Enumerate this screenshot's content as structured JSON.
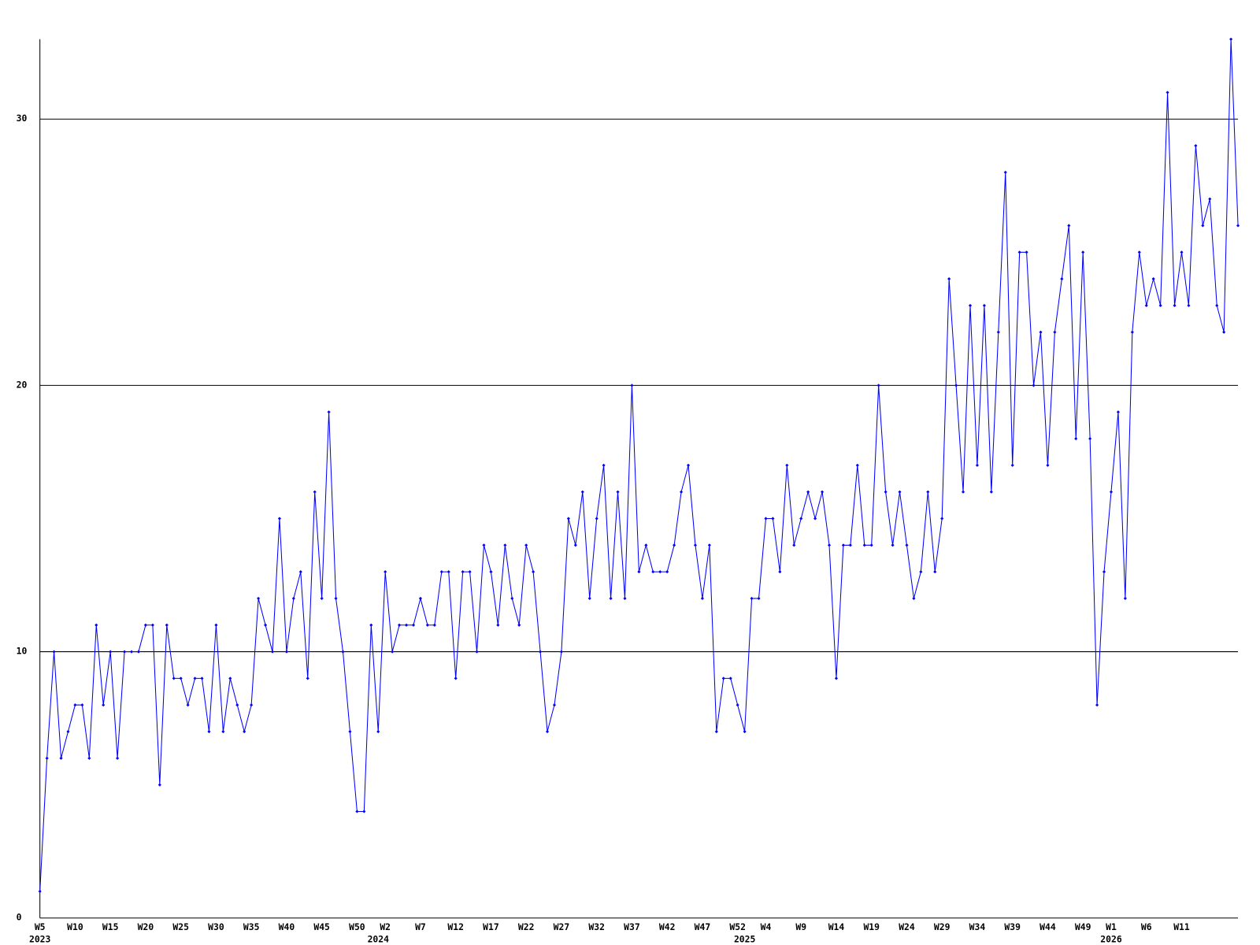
{
  "chart_data": {
    "type": "line",
    "categories": [
      "W5",
      null,
      null,
      null,
      null,
      "W10",
      null,
      null,
      null,
      null,
      "W15",
      null,
      null,
      null,
      null,
      "W20",
      null,
      null,
      null,
      null,
      "W25",
      null,
      null,
      null,
      null,
      "W30",
      null,
      null,
      null,
      null,
      "W35",
      null,
      null,
      null,
      null,
      "W40",
      null,
      null,
      null,
      null,
      "W45",
      null,
      null,
      null,
      null,
      "W50",
      null,
      null,
      null,
      "W2",
      null,
      null,
      null,
      null,
      "W7",
      null,
      null,
      null,
      null,
      "W12",
      null,
      null,
      null,
      null,
      "W17",
      null,
      null,
      null,
      null,
      "W22",
      null,
      null,
      null,
      null,
      "W27",
      null,
      null,
      null,
      null,
      "W32",
      null,
      null,
      null,
      null,
      "W37",
      null,
      null,
      null,
      null,
      "W42",
      null,
      null,
      null,
      null,
      "W47",
      null,
      null,
      null,
      null,
      "W52",
      null,
      null,
      null,
      "W4",
      null,
      null,
      null,
      null,
      "W9",
      null,
      null,
      null,
      null,
      "W14",
      null,
      null,
      null,
      null,
      "W19",
      null,
      null,
      null,
      null,
      "W24",
      null,
      null,
      null,
      null,
      "W29",
      null,
      null,
      null,
      null,
      "W34",
      null,
      null,
      null,
      null,
      "W39",
      null,
      null,
      null,
      null,
      "W44",
      null,
      null,
      null,
      null,
      "W49",
      null,
      null,
      null,
      "W1",
      null,
      null,
      null,
      null,
      "W6",
      null,
      null,
      null,
      null,
      "W11",
      null,
      null,
      null,
      null,
      null,
      null,
      null,
      null
    ],
    "year_labels": [
      "2023",
      null,
      null,
      null,
      null,
      null,
      null,
      null,
      null,
      null,
      null,
      null,
      null,
      null,
      null,
      null,
      null,
      null,
      null,
      null,
      null,
      null,
      null,
      null,
      null,
      null,
      null,
      null,
      null,
      null,
      null,
      null,
      null,
      null,
      null,
      null,
      null,
      null,
      null,
      null,
      null,
      null,
      null,
      null,
      null,
      null,
      null,
      null,
      "2024",
      null,
      null,
      null,
      null,
      null,
      null,
      null,
      null,
      null,
      null,
      null,
      null,
      null,
      null,
      null,
      null,
      null,
      null,
      null,
      null,
      null,
      null,
      null,
      null,
      null,
      null,
      null,
      null,
      null,
      null,
      null,
      null,
      null,
      null,
      null,
      null,
      null,
      null,
      null,
      null,
      null,
      null,
      null,
      null,
      null,
      null,
      null,
      null,
      null,
      null,
      null,
      "2025",
      null,
      null,
      null,
      null,
      null,
      null,
      null,
      null,
      null,
      null,
      null,
      null,
      null,
      null,
      null,
      null,
      null,
      null,
      null,
      null,
      null,
      null,
      null,
      null,
      null,
      null,
      null,
      null,
      null,
      null,
      null,
      null,
      null,
      null,
      null,
      null,
      null,
      null,
      null,
      null,
      null,
      null,
      null,
      null,
      null,
      null,
      null,
      null,
      null,
      null,
      null,
      "2026",
      null,
      null,
      null,
      null,
      null,
      null,
      null,
      null,
      null,
      null,
      null,
      null,
      null,
      null,
      null,
      null,
      null,
      null
    ],
    "values": [
      1,
      6,
      10,
      6,
      7,
      8,
      8,
      6,
      11,
      8,
      10,
      6,
      10,
      10,
      10,
      11,
      11,
      5,
      11,
      9,
      9,
      8,
      9,
      9,
      7,
      11,
      7,
      9,
      8,
      7,
      8,
      12,
      11,
      10,
      15,
      10,
      12,
      13,
      9,
      16,
      12,
      19,
      12,
      10,
      7,
      4,
      4,
      11,
      7,
      13,
      10,
      11,
      11,
      11,
      12,
      11,
      11,
      13,
      13,
      9,
      13,
      13,
      10,
      14,
      13,
      11,
      14,
      12,
      11,
      14,
      13,
      10,
      7,
      8,
      10,
      15,
      14,
      16,
      12,
      15,
      17,
      12,
      16,
      12,
      20,
      13,
      14,
      13,
      13,
      13,
      14,
      16,
      17,
      14,
      12,
      14,
      7,
      9,
      9,
      8,
      7,
      12,
      12,
      15,
      15,
      13,
      17,
      14,
      15,
      16,
      15,
      16,
      14,
      9,
      14,
      14,
      17,
      14,
      14,
      20,
      16,
      14,
      16,
      14,
      12,
      13,
      16,
      13,
      15,
      24,
      20,
      16,
      23,
      17,
      23,
      16,
      22,
      28,
      17,
      25,
      25,
      20,
      22,
      17,
      22,
      24,
      26,
      18,
      25,
      18,
      8,
      13,
      16,
      19,
      12,
      22,
      25,
      23,
      24,
      23,
      31,
      23,
      25,
      23,
      29,
      26,
      27,
      23,
      22,
      33,
      26
    ],
    "color": "#0000ff",
    "ylim": [
      0,
      33
    ],
    "yticks": [
      0,
      10,
      20,
      30
    ],
    "grid": true
  }
}
